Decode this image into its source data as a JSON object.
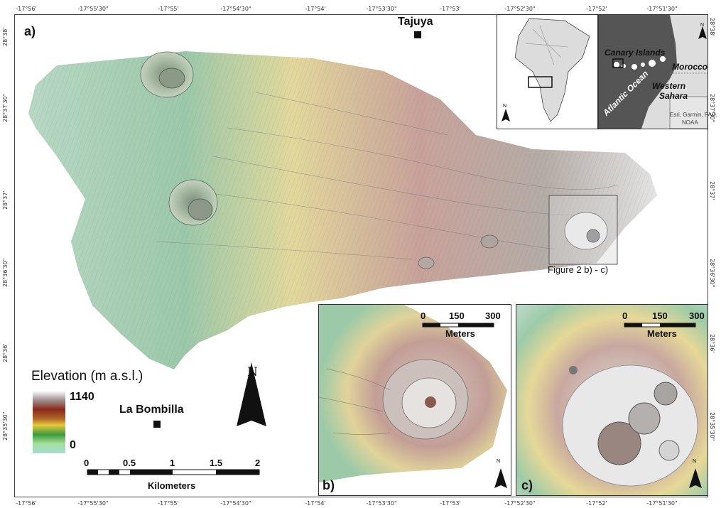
{
  "panel_labels": {
    "a": "a)",
    "b": "b)",
    "c": "c)"
  },
  "top_ticks": [
    "-17°56'",
    "-17°55'30\"",
    "-17°55'",
    "-17°54'30\"",
    "-17°54'",
    "-17°53'30\"",
    "-17°53'",
    "-17°52'30\"",
    "-17°52'",
    "-17°51'30\""
  ],
  "bottom_ticks": [
    "-17°56'",
    "-17°55'30\"",
    "-17°55'",
    "-17°54'30\"",
    "-17°54'",
    "-17°53'30\"",
    "-17°53'",
    "-17°52'30\"",
    "-17°52'",
    "-17°51'30\""
  ],
  "left_ticks": [
    "28°38'",
    "28°37'30\"",
    "28°37'",
    "28°36'30\"",
    "28°36'",
    "28°35'30\""
  ],
  "right_ticks": [
    "28°38'",
    "28°37'30\"",
    "28°37'",
    "28°36'30\"",
    "28°36'",
    "28°35'30\""
  ],
  "places": {
    "tajuya": "Tajuya",
    "la_bombilla": "La Bombilla"
  },
  "legend": {
    "title": "Elevation (m a.s.l.)",
    "max": "1140",
    "min": "0"
  },
  "main_scale": {
    "ticks": [
      "0",
      "0.5",
      "1",
      "1.5",
      "2"
    ],
    "unit": "Kilometers"
  },
  "detail_scale": {
    "ticks": [
      "0",
      "150",
      "300"
    ],
    "unit": "Meters"
  },
  "extent_box_label": "Figure 2 b) - c)",
  "north_label": "N",
  "location_map": {
    "canary_islands": "Canary Islands",
    "morocco": "Morocco",
    "atlantic_ocean": "Atlantic Ocean",
    "western_sahara_1": "Western",
    "western_sahara_2": "Sahara",
    "attribution_1": "Esri, Garmin, FAO,",
    "attribution_2": "NOAA"
  },
  "colors": {
    "low": "#a8dcc8",
    "green": "#8cc6a0",
    "yellow": "#e8dc90",
    "brown": "#c49a8e",
    "high": "#e8e8e8",
    "ocean": "#555555",
    "land": "#dddddd"
  }
}
